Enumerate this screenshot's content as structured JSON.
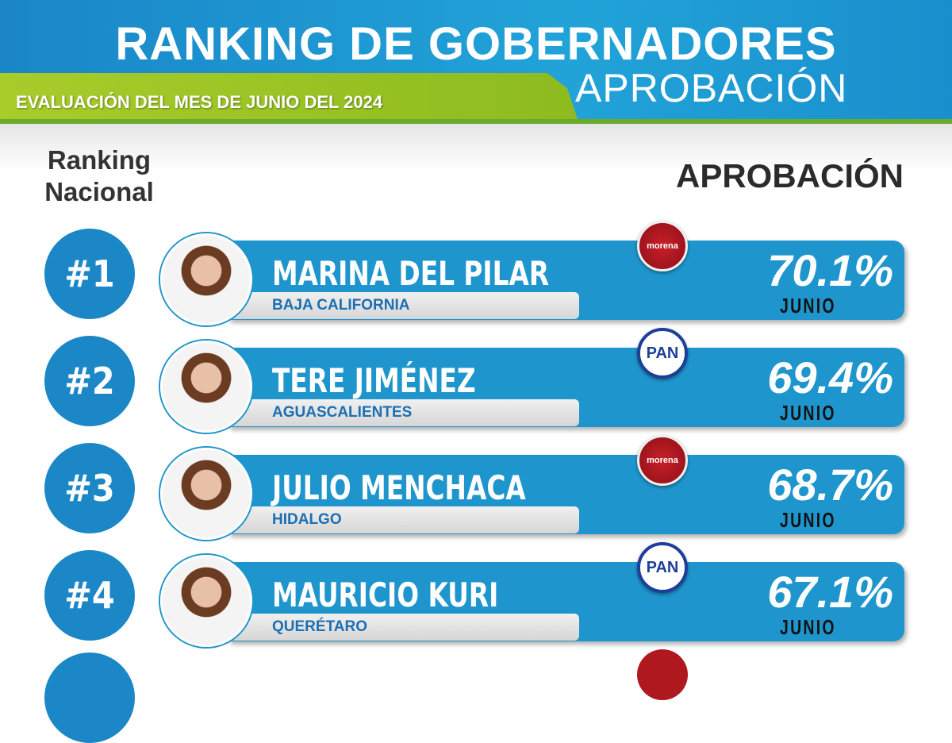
{
  "header": {
    "title": "RANKING DE GOBERNADORES",
    "subtitle": "APROBACIÓN",
    "evaluation": "EVALUACIÓN DEL MES DE JUNIO DEL 2024"
  },
  "columns": {
    "ranking": "Ranking Nacional",
    "approval": "APROBACIÓN"
  },
  "colors": {
    "primary_blue": "#1e96cd",
    "green": "#a8cc2a",
    "morena_red": "#b01820",
    "pan_blue": "#1d3f99"
  },
  "governors": [
    {
      "rank": "#1",
      "name": "MARINA DEL PILAR",
      "state": "BAJA CALIFORNIA",
      "party": "morena",
      "approval": "70.1%",
      "month": "JUNIO"
    },
    {
      "rank": "#2",
      "name": "TERE JIMÉNEZ",
      "state": "AGUASCALIENTES",
      "party": "PAN",
      "approval": "69.4%",
      "month": "JUNIO"
    },
    {
      "rank": "#3",
      "name": "JULIO MENCHACA",
      "state": "HIDALGO",
      "party": "morena",
      "approval": "68.7%",
      "month": "JUNIO"
    },
    {
      "rank": "#4",
      "name": "MAURICIO KURI",
      "state": "QUERÉTARO",
      "party": "PAN",
      "approval": "67.1%",
      "month": "JUNIO"
    }
  ]
}
